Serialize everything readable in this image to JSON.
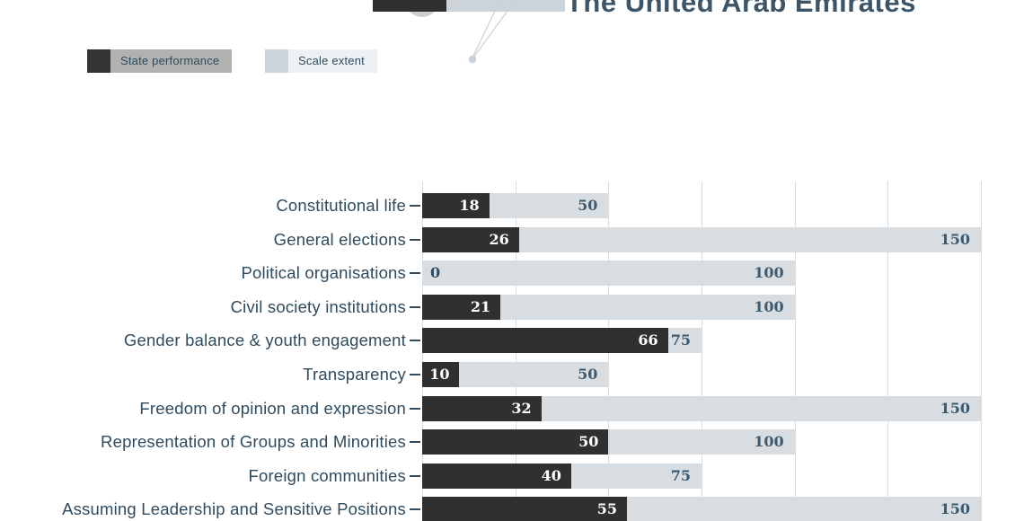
{
  "title": "The United Arab Emirates",
  "legend": {
    "items": [
      {
        "label": "State performance",
        "swatch_color": "#343434",
        "bg_color": "#b1b1af"
      },
      {
        "label": "Scale extent",
        "swatch_color": "#ccd4d9",
        "bg_color": "#eef1f3"
      }
    ]
  },
  "chart_data": {
    "type": "bar",
    "orientation": "horizontal",
    "title": "The United Arab Emirates",
    "categories": [
      "Constitutional life",
      "General elections",
      "Political organisations",
      "Civil society institutions",
      "Gender balance & youth engagement",
      "Transparency",
      "Freedom of opinion and expression",
      "Representation of Groups and Minorities",
      "Foreign communities",
      "Assuming Leadership and Sensitive Positions"
    ],
    "series": [
      {
        "name": "State performance",
        "values": [
          18,
          26,
          0,
          21,
          66,
          10,
          32,
          50,
          40,
          55
        ],
        "color": "#303030",
        "label_color": "#ffffff"
      },
      {
        "name": "Scale extent",
        "values": [
          50,
          150,
          100,
          100,
          75,
          50,
          150,
          100,
          75,
          150
        ],
        "color": "#d7dde1",
        "label_color": "#3d5a6e"
      }
    ],
    "xlim": [
      0,
      150
    ],
    "gridline_interval": 25,
    "grid": true,
    "legend_position": "top-left",
    "value_labels": true
  },
  "colors": {
    "background": "#ffffff",
    "title": "#3c5568",
    "category_label": "#2f4b5f",
    "tick": "#2f4b5f",
    "gridline": "#d9dde0",
    "zero_value_label": "#2f4b5f",
    "illustration_circle": "#c9cfd3",
    "illustration_line": "#c9d1d9",
    "illustration_dot": "#c8d0d8"
  }
}
